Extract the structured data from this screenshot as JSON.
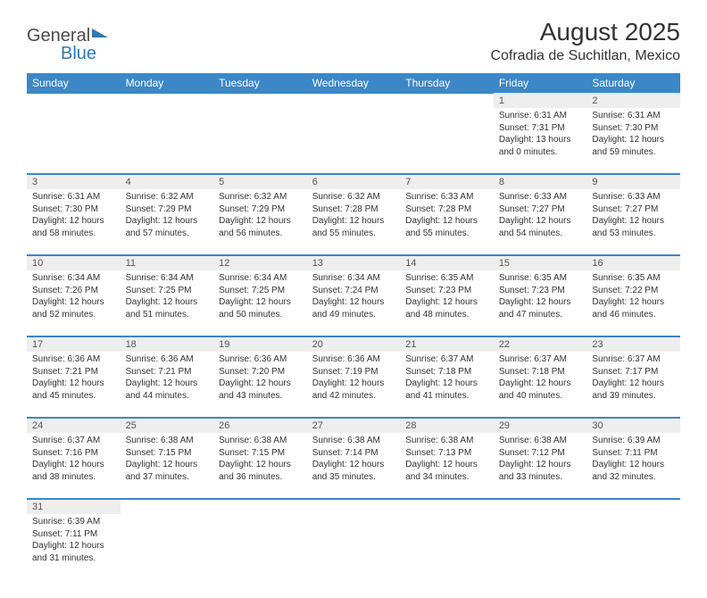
{
  "brand": {
    "part1": "General",
    "part2": "Blue"
  },
  "title": "August 2025",
  "location": "Cofradia de Suchitlan, Mexico",
  "colors": {
    "header_bg": "#3b87c8",
    "header_text": "#ffffff",
    "daynum_bg": "#eeeeee",
    "rule": "#3b87c8",
    "text": "#333333"
  },
  "dayHeaders": [
    "Sunday",
    "Monday",
    "Tuesday",
    "Wednesday",
    "Thursday",
    "Friday",
    "Saturday"
  ],
  "weeks": [
    [
      null,
      null,
      null,
      null,
      null,
      {
        "n": "1",
        "sr": "6:31 AM",
        "ss": "7:31 PM",
        "dl": "13 hours and 0 minutes."
      },
      {
        "n": "2",
        "sr": "6:31 AM",
        "ss": "7:30 PM",
        "dl": "12 hours and 59 minutes."
      }
    ],
    [
      {
        "n": "3",
        "sr": "6:31 AM",
        "ss": "7:30 PM",
        "dl": "12 hours and 58 minutes."
      },
      {
        "n": "4",
        "sr": "6:32 AM",
        "ss": "7:29 PM",
        "dl": "12 hours and 57 minutes."
      },
      {
        "n": "5",
        "sr": "6:32 AM",
        "ss": "7:29 PM",
        "dl": "12 hours and 56 minutes."
      },
      {
        "n": "6",
        "sr": "6:32 AM",
        "ss": "7:28 PM",
        "dl": "12 hours and 55 minutes."
      },
      {
        "n": "7",
        "sr": "6:33 AM",
        "ss": "7:28 PM",
        "dl": "12 hours and 55 minutes."
      },
      {
        "n": "8",
        "sr": "6:33 AM",
        "ss": "7:27 PM",
        "dl": "12 hours and 54 minutes."
      },
      {
        "n": "9",
        "sr": "6:33 AM",
        "ss": "7:27 PM",
        "dl": "12 hours and 53 minutes."
      }
    ],
    [
      {
        "n": "10",
        "sr": "6:34 AM",
        "ss": "7:26 PM",
        "dl": "12 hours and 52 minutes."
      },
      {
        "n": "11",
        "sr": "6:34 AM",
        "ss": "7:25 PM",
        "dl": "12 hours and 51 minutes."
      },
      {
        "n": "12",
        "sr": "6:34 AM",
        "ss": "7:25 PM",
        "dl": "12 hours and 50 minutes."
      },
      {
        "n": "13",
        "sr": "6:34 AM",
        "ss": "7:24 PM",
        "dl": "12 hours and 49 minutes."
      },
      {
        "n": "14",
        "sr": "6:35 AM",
        "ss": "7:23 PM",
        "dl": "12 hours and 48 minutes."
      },
      {
        "n": "15",
        "sr": "6:35 AM",
        "ss": "7:23 PM",
        "dl": "12 hours and 47 minutes."
      },
      {
        "n": "16",
        "sr": "6:35 AM",
        "ss": "7:22 PM",
        "dl": "12 hours and 46 minutes."
      }
    ],
    [
      {
        "n": "17",
        "sr": "6:36 AM",
        "ss": "7:21 PM",
        "dl": "12 hours and 45 minutes."
      },
      {
        "n": "18",
        "sr": "6:36 AM",
        "ss": "7:21 PM",
        "dl": "12 hours and 44 minutes."
      },
      {
        "n": "19",
        "sr": "6:36 AM",
        "ss": "7:20 PM",
        "dl": "12 hours and 43 minutes."
      },
      {
        "n": "20",
        "sr": "6:36 AM",
        "ss": "7:19 PM",
        "dl": "12 hours and 42 minutes."
      },
      {
        "n": "21",
        "sr": "6:37 AM",
        "ss": "7:18 PM",
        "dl": "12 hours and 41 minutes."
      },
      {
        "n": "22",
        "sr": "6:37 AM",
        "ss": "7:18 PM",
        "dl": "12 hours and 40 minutes."
      },
      {
        "n": "23",
        "sr": "6:37 AM",
        "ss": "7:17 PM",
        "dl": "12 hours and 39 minutes."
      }
    ],
    [
      {
        "n": "24",
        "sr": "6:37 AM",
        "ss": "7:16 PM",
        "dl": "12 hours and 38 minutes."
      },
      {
        "n": "25",
        "sr": "6:38 AM",
        "ss": "7:15 PM",
        "dl": "12 hours and 37 minutes."
      },
      {
        "n": "26",
        "sr": "6:38 AM",
        "ss": "7:15 PM",
        "dl": "12 hours and 36 minutes."
      },
      {
        "n": "27",
        "sr": "6:38 AM",
        "ss": "7:14 PM",
        "dl": "12 hours and 35 minutes."
      },
      {
        "n": "28",
        "sr": "6:38 AM",
        "ss": "7:13 PM",
        "dl": "12 hours and 34 minutes."
      },
      {
        "n": "29",
        "sr": "6:38 AM",
        "ss": "7:12 PM",
        "dl": "12 hours and 33 minutes."
      },
      {
        "n": "30",
        "sr": "6:39 AM",
        "ss": "7:11 PM",
        "dl": "12 hours and 32 minutes."
      }
    ],
    [
      {
        "n": "31",
        "sr": "6:39 AM",
        "ss": "7:11 PM",
        "dl": "12 hours and 31 minutes."
      },
      null,
      null,
      null,
      null,
      null,
      null
    ]
  ],
  "labels": {
    "sunrise": "Sunrise:",
    "sunset": "Sunset:",
    "daylight": "Daylight:"
  }
}
